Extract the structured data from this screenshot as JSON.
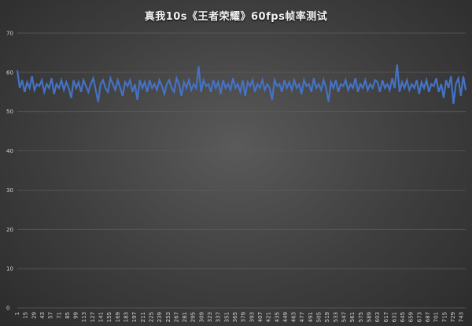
{
  "chart_data": {
    "type": "line",
    "title": "真我10s《王者荣耀》60fps帧率测试",
    "ylim": [
      0,
      70
    ],
    "yticks": [
      0,
      10,
      20,
      30,
      40,
      50,
      60,
      70
    ],
    "xlim": [
      1,
      750
    ],
    "xticks": [
      1,
      15,
      29,
      43,
      57,
      71,
      85,
      99,
      113,
      127,
      141,
      155,
      169,
      183,
      197,
      211,
      225,
      239,
      253,
      267,
      281,
      295,
      309,
      323,
      337,
      351,
      365,
      379,
      393,
      407,
      421,
      435,
      449,
      463,
      477,
      491,
      505,
      519,
      533,
      547,
      561,
      575,
      589,
      603,
      617,
      631,
      645,
      659,
      673,
      687,
      701,
      715,
      729,
      743
    ],
    "grid": true,
    "legend": "none",
    "line_color": "#4472c4",
    "series": [
      {
        "values": [
          60.5,
          56,
          58,
          55,
          57.5,
          56,
          59,
          55.5,
          57,
          56.5,
          58,
          55,
          57,
          56,
          58.5,
          54.5,
          57,
          56,
          58,
          55.5,
          57.5,
          56,
          53.5,
          58,
          56,
          57.5,
          55,
          58,
          56.5,
          55,
          57,
          58.5,
          55.5,
          52.5,
          57,
          58,
          56,
          55,
          58.5,
          57,
          55.5,
          58,
          56,
          54,
          57.5,
          56.5,
          58,
          55,
          57,
          53,
          58,
          56,
          57.5,
          55,
          58,
          56,
          57,
          55.5,
          58,
          56.5,
          54.5,
          57,
          58,
          56,
          55,
          58.5,
          57,
          54,
          57.5,
          56,
          58,
          55.5,
          57,
          56,
          61.5,
          55,
          58,
          56.5,
          57,
          55,
          58,
          56,
          57.5,
          54.5,
          58,
          56,
          57,
          55.5,
          58.5,
          56,
          57,
          55,
          58,
          54,
          57.5,
          56.5,
          58,
          55,
          57,
          56,
          58,
          55.5,
          57,
          56,
          53,
          58,
          56.5,
          57,
          55,
          58,
          56,
          57.5,
          55.5,
          58,
          56,
          57,
          54.5,
          58,
          56.5,
          57,
          55,
          58.5,
          56,
          57,
          55.5,
          58,
          56,
          52.5,
          57.5,
          56,
          58,
          55,
          57,
          56.5,
          58,
          55.5,
          57,
          56,
          58.5,
          55,
          57,
          56,
          58,
          55.5,
          57,
          56,
          58,
          57.5,
          55,
          58,
          56,
          57,
          55.5,
          58.5,
          56,
          62,
          55,
          57.5,
          56,
          58,
          55.5,
          57,
          56,
          58,
          54.5,
          57.5,
          56,
          58,
          55,
          57,
          56.5,
          58.5,
          55,
          57,
          53.5,
          58,
          56,
          59,
          52,
          57,
          58.5,
          54,
          59,
          55.5
        ]
      }
    ]
  }
}
